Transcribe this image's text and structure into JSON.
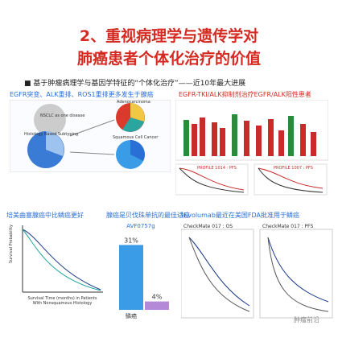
{
  "title": [
    "2、重视病理学与遗传学对",
    "肺癌患者个体化治疗的价值"
  ],
  "bullet": "基于肿瘤病理学与基因学特征的“个体化治疗”——近10年最大进展",
  "panels": {
    "top_left": {
      "caption": "EGFR突变、ALK重排、ROS1重排更多发生于腺癌",
      "labels": [
        "NSCLC as one disease",
        "Histology Based Subtyping",
        "Adenocarcinoma",
        "Squamous Cell Cancer"
      ]
    },
    "top_right": {
      "caption": "EGFR-TKI/ALK抑制剂治疗EGFR/ALK阳性患者",
      "labels": [
        "PROFILE 1014 : PFS",
        "PROFILE 1007 : PFS"
      ]
    },
    "bottom_left": {
      "caption": "培美曲塞腺癌中比鳞癌更好",
      "y_label": "Survival Probability",
      "x_label": "Survival Time (months) in Patients With Nonsquamous Histology"
    },
    "bottom_mid": {
      "caption": "腺癌是贝伐珠单抗的最佳适应",
      "chart_data": {
        "type": "bar",
        "title": "AVF0757g",
        "categories": [
          "鳞癌",
          null
        ],
        "values": [
          31,
          4
        ],
        "value_labels": [
          "31%",
          "4%"
        ],
        "colors": [
          "#3a9be6",
          "#b48ad8"
        ]
      }
    },
    "bottom_right": {
      "caption": "Nivolumab最近在美国FDA批准用于鳞癌",
      "labels": [
        "CheckMate 017 : OS",
        "CheckMate 017 : PFS"
      ]
    }
  },
  "watermark": "肿瘤前沿"
}
